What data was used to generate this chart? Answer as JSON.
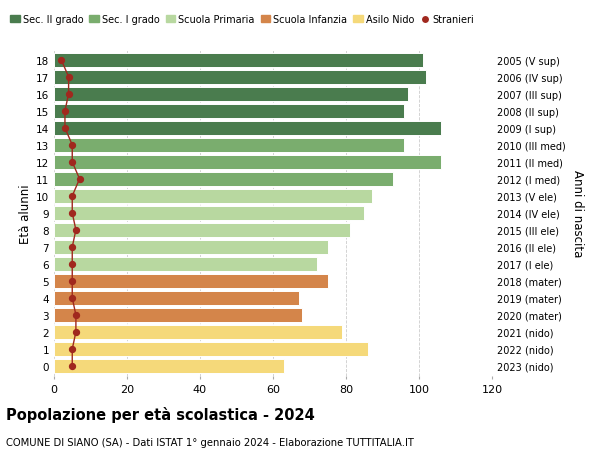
{
  "ages": [
    18,
    17,
    16,
    15,
    14,
    13,
    12,
    11,
    10,
    9,
    8,
    7,
    6,
    5,
    4,
    3,
    2,
    1,
    0
  ],
  "years": [
    "2005 (V sup)",
    "2006 (IV sup)",
    "2007 (III sup)",
    "2008 (II sup)",
    "2009 (I sup)",
    "2010 (III med)",
    "2011 (II med)",
    "2012 (I med)",
    "2013 (V ele)",
    "2014 (IV ele)",
    "2015 (III ele)",
    "2016 (II ele)",
    "2017 (I ele)",
    "2018 (mater)",
    "2019 (mater)",
    "2020 (mater)",
    "2021 (nido)",
    "2022 (nido)",
    "2023 (nido)"
  ],
  "values": [
    101,
    102,
    97,
    96,
    106,
    96,
    106,
    93,
    87,
    85,
    81,
    75,
    72,
    75,
    67,
    68,
    79,
    86,
    63
  ],
  "stranieri": [
    2,
    4,
    4,
    3,
    3,
    5,
    5,
    7,
    5,
    5,
    6,
    5,
    5,
    5,
    5,
    6,
    6,
    5,
    5
  ],
  "bar_colors": [
    "#4a7c4e",
    "#4a7c4e",
    "#4a7c4e",
    "#4a7c4e",
    "#4a7c4e",
    "#7aad6e",
    "#7aad6e",
    "#7aad6e",
    "#b8d8a0",
    "#b8d8a0",
    "#b8d8a0",
    "#b8d8a0",
    "#b8d8a0",
    "#d4854a",
    "#d4854a",
    "#d4854a",
    "#f5d97a",
    "#f5d97a",
    "#f5d97a"
  ],
  "legend_labels": [
    "Sec. II grado",
    "Sec. I grado",
    "Scuola Primaria",
    "Scuola Infanzia",
    "Asilo Nido",
    "Stranieri"
  ],
  "legend_colors": [
    "#4a7c4e",
    "#7aad6e",
    "#b8d8a0",
    "#d4854a",
    "#f5d97a",
    "#a0281e"
  ],
  "stranieri_color": "#a0281e",
  "title": "Popolazione per età scolastica - 2024",
  "subtitle": "COMUNE DI SIANO (SA) - Dati ISTAT 1° gennaio 2024 - Elaborazione TUTTITALIA.IT",
  "ylabel_left": "Età alunni",
  "ylabel_right": "Anni di nascita",
  "xlim": [
    0,
    120
  ],
  "xticks": [
    0,
    20,
    40,
    60,
    80,
    100,
    120
  ],
  "background_color": "#ffffff",
  "grid_color": "#cccccc"
}
